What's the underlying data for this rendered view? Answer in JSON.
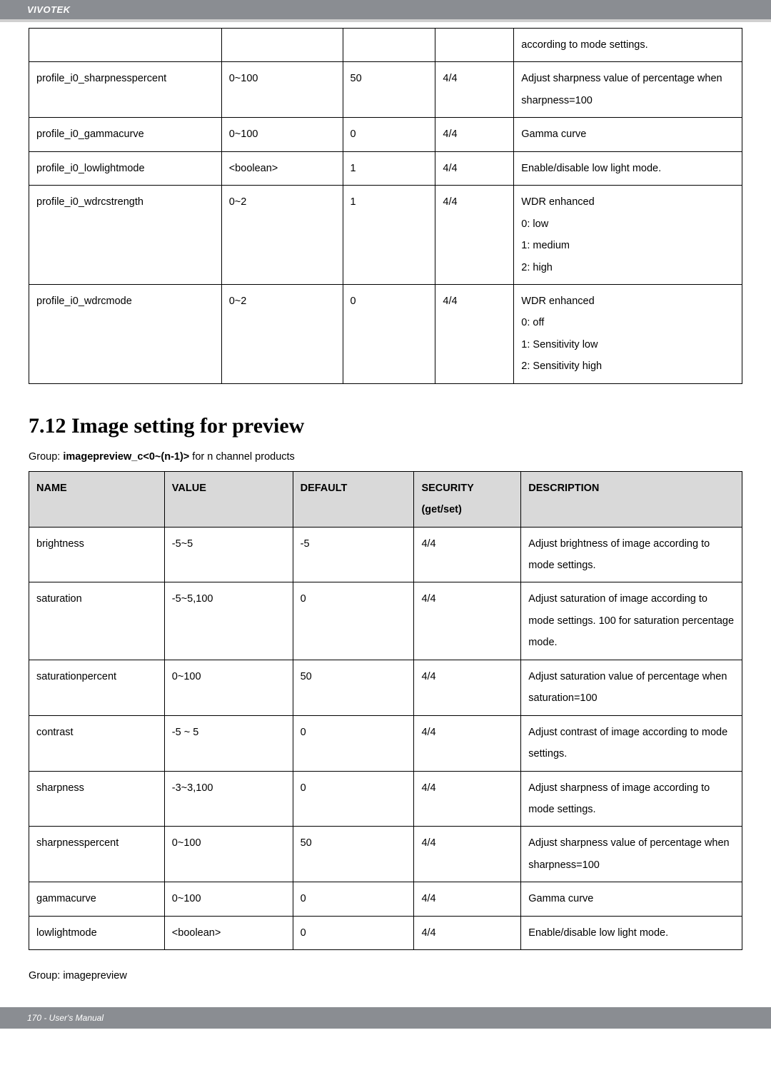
{
  "header": {
    "brand": "VIVOTEK"
  },
  "table1": {
    "rows": [
      {
        "name": "",
        "value": "",
        "default": "",
        "security": "",
        "description": "according to mode settings."
      },
      {
        "name": "profile_i0_sharpnesspercent",
        "value": "0~100",
        "default": "50",
        "security": "4/4",
        "description": "Adjust sharpness value of percentage when sharpness=100"
      },
      {
        "name": "profile_i0_gammacurve",
        "value": "0~100",
        "default": "0",
        "security": "4/4",
        "description": "Gamma curve"
      },
      {
        "name": "profile_i0_lowlightmode",
        "value": "<boolean>",
        "default": "1",
        "security": "4/4",
        "description": "Enable/disable low light mode."
      },
      {
        "name": "profile_i0_wdrcstrength",
        "value": "0~2",
        "default": "1",
        "security": "4/4",
        "description": "WDR enhanced\n0: low\n1: medium\n2: high"
      },
      {
        "name": "profile_i0_wdrcmode",
        "value": "0~2",
        "default": "0",
        "security": "4/4",
        "description": "WDR enhanced\n0: off\n1: Sensitivity low\n2: Sensitivity high"
      }
    ]
  },
  "section": {
    "title": "7.12 Image setting for preview",
    "subhead_prefix": "Group: ",
    "subhead_bold": "imagepreview_c<0~(n-1)>",
    "subhead_suffix": " for n channel products"
  },
  "table2": {
    "header": {
      "name": "NAME",
      "value": "VALUE",
      "default": "DEFAULT",
      "security": "SECURITY (get/set)",
      "description": "DESCRIPTION"
    },
    "rows": [
      {
        "name": "brightness",
        "value": "-5~5",
        "default": "-5",
        "security": "4/4",
        "description": "Adjust brightness of image according to mode settings."
      },
      {
        "name": "saturation",
        "value": "-5~5,100",
        "default": "0",
        "security": "4/4",
        "description": "Adjust saturation of image according to mode settings. 100 for saturation percentage mode."
      },
      {
        "name": "saturationpercent",
        "value": "0~100",
        "default": "50",
        "security": "4/4",
        "description": "Adjust saturation value of percentage when saturation=100"
      },
      {
        "name": "contrast",
        "value": "-5 ~ 5",
        "default": "0",
        "security": "4/4",
        "description": "Adjust contrast of image according to mode settings."
      },
      {
        "name": "sharpness",
        "value": "-3~3,100",
        "default": "0",
        "security": "4/4",
        "description": "Adjust sharpness of image according to mode settings."
      },
      {
        "name": "sharpnesspercent",
        "value": "0~100",
        "default": "50",
        "security": "4/4",
        "description": "Adjust sharpness value of percentage when sharpness=100"
      },
      {
        "name": "gammacurve",
        "value": "0~100",
        "default": "0",
        "security": "4/4",
        "description": "Gamma curve"
      },
      {
        "name": "lowlightmode",
        "value": "<boolean>",
        "default": "0",
        "security": "4/4",
        "description": "Enable/disable low light mode."
      }
    ]
  },
  "footer_label": "Group: imagepreview",
  "footer_bar": "170 - User's Manual"
}
